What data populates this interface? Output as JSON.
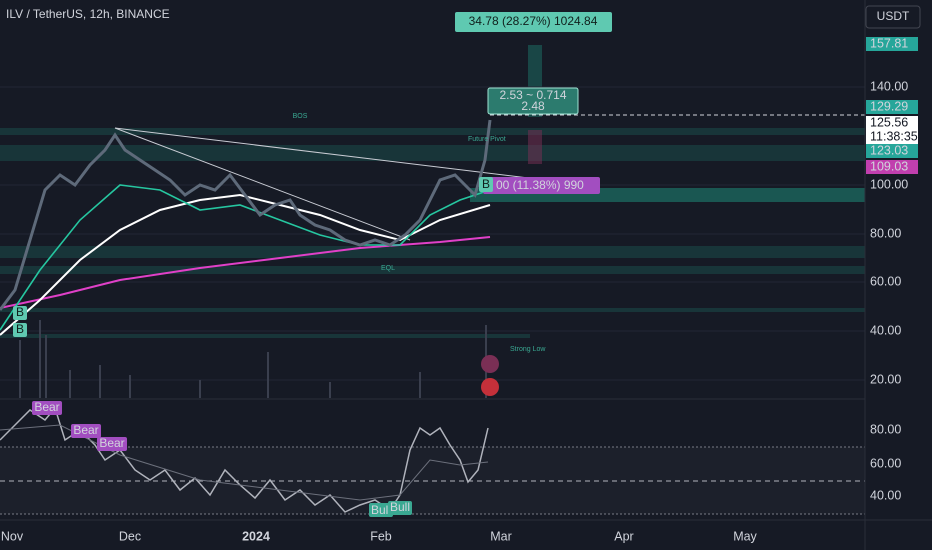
{
  "header": {
    "symbol": "ILV / TetherUS, 12h, BINANCE",
    "currency": "USDT"
  },
  "price_axis": {
    "labels": [
      "157.81",
      "140.00",
      "129.29",
      "125.56",
      "11:38:35",
      "123.03",
      "109.03",
      "100.00",
      "80.00",
      "60.00",
      "40.00",
      "20.00"
    ]
  },
  "rsi_axis": {
    "labels": [
      "80.00",
      "60.00",
      "40.00"
    ]
  },
  "time_axis": {
    "labels": [
      "Nov",
      "Dec",
      "2024",
      "Feb",
      "Mar",
      "Apr",
      "May"
    ]
  },
  "annotations": {
    "range_box": "34.78 (28.27%) 1024.84",
    "risk_box": {
      "line1": "2.53 ~ 0.714",
      "line2": "2.48"
    },
    "target_box": "00 (11.38%) 990",
    "bos": "BOS",
    "future_pivot": "Future Pivot",
    "strong_low": "Strong Low",
    "eql": "EQL",
    "bear": [
      "Bear",
      "Bear",
      "Bear"
    ],
    "bull": [
      "Bull",
      "Bull"
    ],
    "buy": [
      "B",
      "B",
      "B"
    ]
  }
}
